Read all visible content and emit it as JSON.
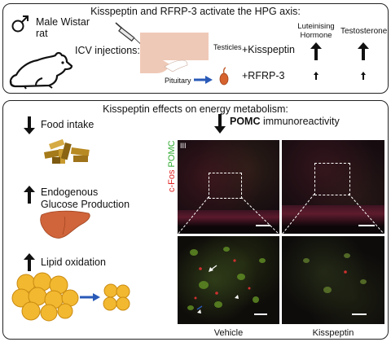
{
  "hpg": {
    "title": "Kisspeptin and RFRP-3 activate the HPG axis:",
    "subject_line1": "Male Wistar",
    "subject_line2": "rat",
    "icv_label": "ICV injections:",
    "pituitary_label": "Pituitary",
    "testicles_label": "Testicles",
    "treatments": [
      "+Kisspeptin",
      "+RFRP-3"
    ],
    "col_lh_line1": "Luteinising",
    "col_lh_line2": "Hormone",
    "col_t": "Testosterone",
    "effects": {
      "kisspeptin": {
        "lh": "up-large",
        "testosterone": "up-large"
      },
      "rfrp3": {
        "lh": "up-small",
        "testosterone": "up-small"
      }
    }
  },
  "energy": {
    "title": "Kisspeptin effects on energy metabolism:",
    "food_intake": "Food intake",
    "egp_line1": "Endogenous",
    "egp_line2": "Glucose Production",
    "lipid": "Lipid oxidation",
    "pomc_bold": "POMC",
    "pomc_rest": " immunoreactivity",
    "panel_label": "III",
    "stain_red": "c-Fos",
    "stain_green": "POMC",
    "vehicle_label": "Vehicle",
    "kisspeptin_label": "Kisspeptin",
    "colors": {
      "red_stain": "#e02020",
      "green_stain": "#2faa2f",
      "arrow_blue": "#2a5ab8"
    }
  }
}
